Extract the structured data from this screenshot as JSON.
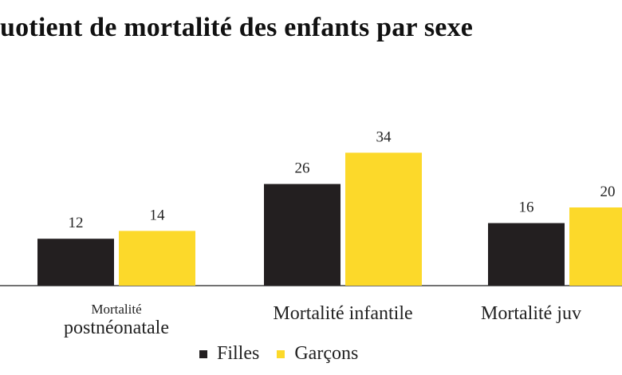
{
  "title": "uotient de mortalité des enfants par sexe",
  "chart_data": {
    "type": "bar",
    "title": "uotient de mortalité des enfants par sexe",
    "categories": [
      "Mortalité postnéonatale",
      "Mortalité infantile",
      "Mortalité juv"
    ],
    "category_label_lines": [
      [
        "Mortalité",
        "postnéonatale"
      ],
      [
        "Mortalité infantile"
      ],
      [
        "Mortalité juv"
      ]
    ],
    "series": [
      {
        "name": "Filles",
        "values": [
          12,
          26,
          16
        ],
        "color": "#231f20"
      },
      {
        "name": "Garçons",
        "values": [
          14,
          34,
          20
        ],
        "color": "#fcd92a"
      }
    ],
    "ylim": [
      0,
      40
    ],
    "grid": false,
    "legend_position": "bottom"
  }
}
